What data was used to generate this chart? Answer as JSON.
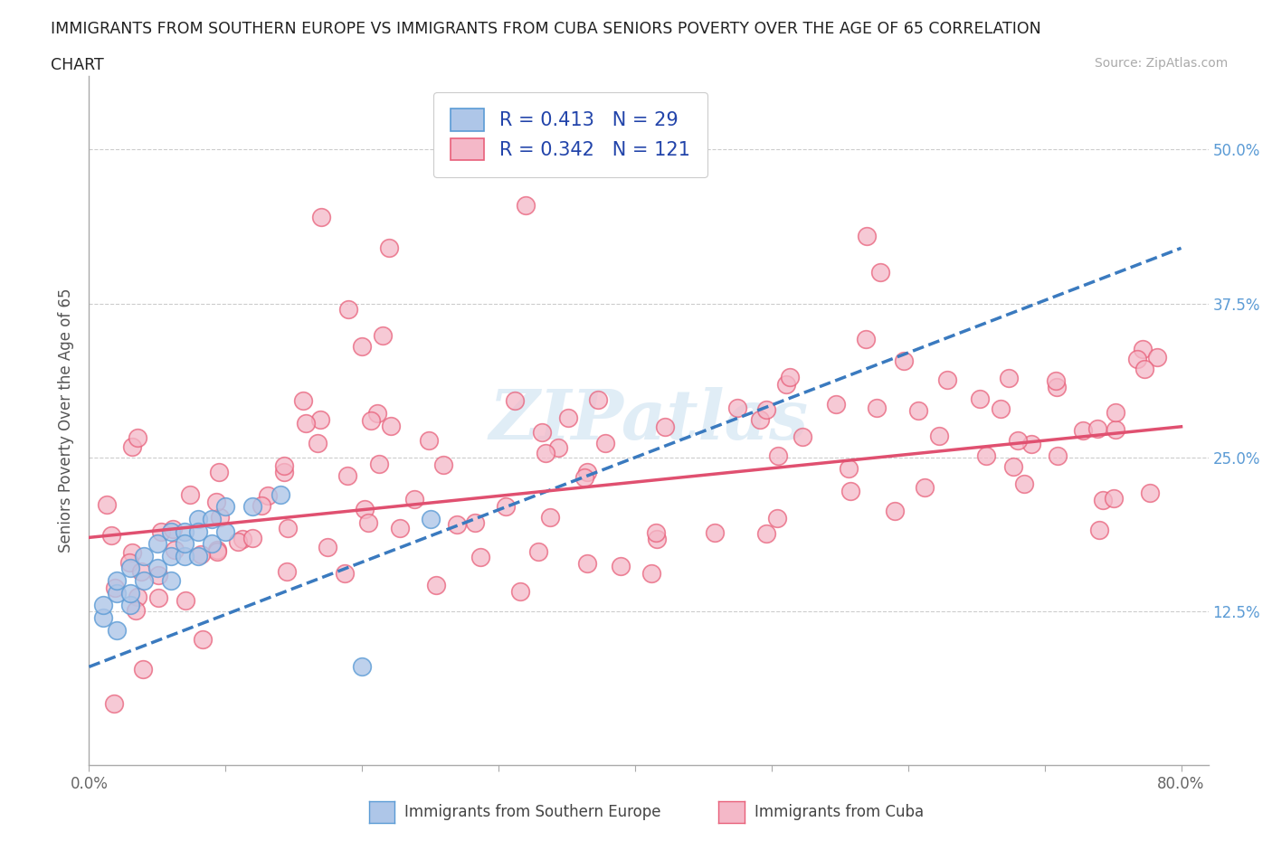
{
  "title_line1": "IMMIGRANTS FROM SOUTHERN EUROPE VS IMMIGRANTS FROM CUBA SENIORS POVERTY OVER THE AGE OF 65 CORRELATION",
  "title_line2": "CHART",
  "source_text": "Source: ZipAtlas.com",
  "ylabel": "Seniors Poverty Over the Age of 65",
  "legend_label1": "Immigrants from Southern Europe",
  "legend_label2": "Immigrants from Cuba",
  "R1": 0.413,
  "N1": 29,
  "R2": 0.342,
  "N2": 121,
  "color1": "#aec6e8",
  "color2": "#f4b8c8",
  "edge1": "#5b9bd5",
  "edge2": "#e8607a",
  "trendline1_color": "#3a7abf",
  "trendline2_color": "#e05070",
  "xlim": [
    0.0,
    0.82
  ],
  "ylim": [
    0.0,
    0.56
  ],
  "ytick_positions": [
    0.0,
    0.125,
    0.25,
    0.375,
    0.5
  ],
  "ytick_labels": [
    "",
    "12.5%",
    "25.0%",
    "37.5%",
    "50.0%"
  ],
  "hlines": [
    0.125,
    0.25,
    0.375,
    0.5
  ],
  "watermark": "ZIPatlas",
  "background_color": "#ffffff",
  "trendline1_start_y": 0.08,
  "trendline1_end_y": 0.42,
  "trendline2_start_y": 0.185,
  "trendline2_end_y": 0.275
}
